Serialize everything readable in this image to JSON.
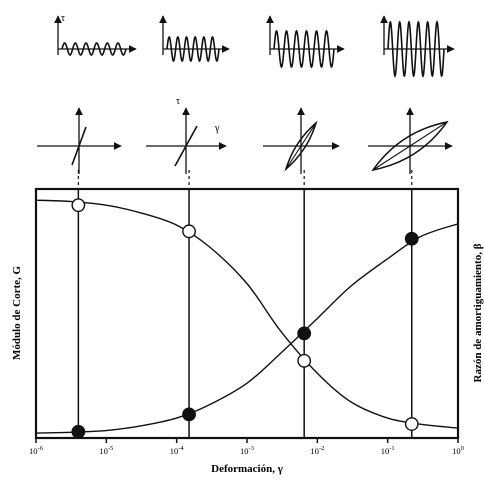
{
  "chart_data": {
    "type": "line",
    "xlabel": "Deformación, γ",
    "ylabel_left": "Módulo de Corte, G",
    "ylabel_right": "Razón de amortiguamiento, β",
    "x_scale": "log",
    "xlim": [
      1e-06,
      1
    ],
    "x_ticks": [
      {
        "base": "10",
        "exp": "-6",
        "value": 1e-06
      },
      {
        "base": "10",
        "exp": "-5",
        "value": 1e-05
      },
      {
        "base": "10",
        "exp": "-4",
        "value": 0.0001
      },
      {
        "base": "10",
        "exp": "-3",
        "value": 0.001
      },
      {
        "base": "10",
        "exp": "-2",
        "value": 0.01
      },
      {
        "base": "10",
        "exp": "-1",
        "value": 0.1
      },
      {
        "base": "10",
        "exp": "0",
        "value": 1
      }
    ],
    "ylim": [
      0,
      1
    ],
    "series": [
      {
        "x": [
          1e-06,
          3e-06,
          1e-05,
          3e-05,
          0.0001,
          0.0003,
          0.001,
          0.003,
          0.01,
          0.03,
          0.1,
          0.3,
          1
        ],
        "values": [
          0.955,
          0.95,
          0.935,
          0.905,
          0.855,
          0.765,
          0.62,
          0.43,
          0.26,
          0.145,
          0.08,
          0.055,
          0.04
        ]
      },
      {
        "x": [
          1e-06,
          3e-06,
          1e-05,
          3e-05,
          0.0001,
          0.0003,
          0.001,
          0.003,
          0.01,
          0.03,
          0.1,
          0.3,
          1
        ],
        "values": [
          0.02,
          0.023,
          0.03,
          0.048,
          0.08,
          0.135,
          0.22,
          0.34,
          0.48,
          0.61,
          0.72,
          0.81,
          0.86
        ]
      }
    ],
    "markers": [
      {
        "x": 4e-06,
        "y": 0.935,
        "fill": "open"
      },
      {
        "x": 0.00015,
        "y": 0.83,
        "fill": "open"
      },
      {
        "x": 0.0065,
        "y": 0.31,
        "fill": "open"
      },
      {
        "x": 0.22,
        "y": 0.056,
        "fill": "open"
      },
      {
        "x": 4e-06,
        "y": 0.025,
        "fill": "filled"
      },
      {
        "x": 0.00015,
        "y": 0.095,
        "fill": "filled"
      },
      {
        "x": 0.0065,
        "y": 0.42,
        "fill": "filled"
      },
      {
        "x": 0.22,
        "y": 0.8,
        "fill": "filled"
      }
    ],
    "top_labels": {
      "tau": "τ",
      "gamma": "γ"
    },
    "grid": false,
    "legend": "none"
  },
  "colors": {
    "ink": "#111111",
    "background": "#ffffff"
  }
}
